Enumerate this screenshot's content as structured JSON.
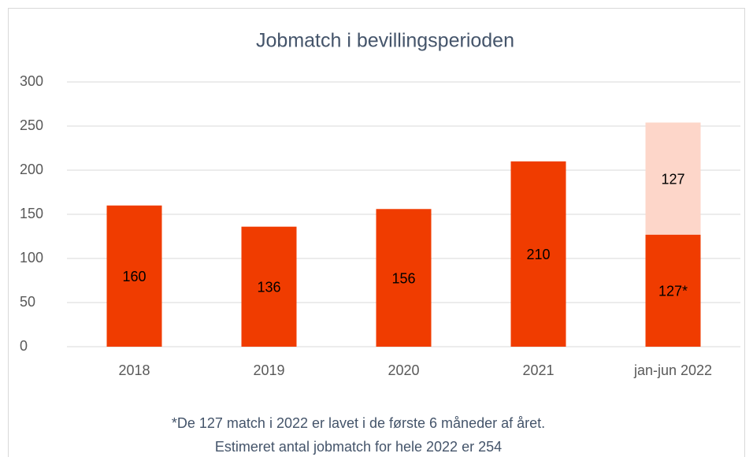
{
  "chart_data": {
    "type": "stacked_bar",
    "title": "Jobmatch i bevillingsperioden",
    "categories": [
      "2018",
      "2019",
      "2020",
      "2021",
      "jan-jun 2022"
    ],
    "series": [
      {
        "color": "#f03c00",
        "values": [
          160,
          136,
          156,
          210,
          127
        ],
        "value_labels": [
          "160",
          "136",
          "156",
          "210",
          "127*"
        ]
      },
      {
        "color": "#fdd6c9",
        "values": [
          null,
          null,
          null,
          null,
          127
        ],
        "value_labels": [
          null,
          null,
          null,
          null,
          "127"
        ]
      }
    ],
    "ylim": [
      0,
      300
    ],
    "yticks": [
      0,
      50,
      100,
      150,
      200,
      250,
      300
    ],
    "grid": true,
    "annotations": [
      "*De 127 match i 2022 er lavet i de første 6 måneder af året.",
      "Estimeret antal jobmatch for hele 2022 er 254"
    ]
  }
}
